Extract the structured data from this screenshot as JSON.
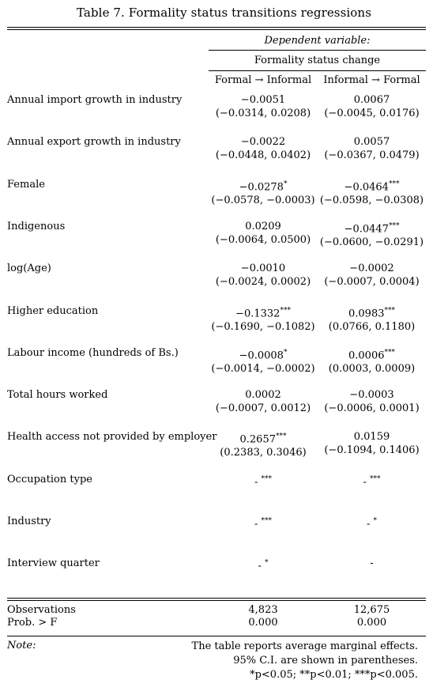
{
  "title": "Table 7. Formality status transitions regressions",
  "header": {
    "dependent_variable": "Dependent variable:",
    "dependent_name": "Formality status change",
    "columns": [
      "Formal → Informal",
      "Informal → Formal"
    ]
  },
  "rows": [
    {
      "label": "Annual import growth in industry",
      "c1_coef": "−0.0051",
      "c1_ci": "(−0.0314, 0.0208)",
      "c2_coef": "0.0067",
      "c2_ci": "(−0.0045, 0.0176)"
    },
    {
      "label": "Annual export growth in industry",
      "c1_coef": "−0.0022",
      "c1_ci": "(−0.0448, 0.0402)",
      "c2_coef": "0.0057",
      "c2_ci": "(−0.0367, 0.0479)"
    },
    {
      "label": "Female",
      "c1_coef": "−0.0278*",
      "c1_ci": "(−0.0578, −0.0003)",
      "c2_coef": "−0.0464***",
      "c2_ci": "(−0.0598, −0.0308)"
    },
    {
      "label": "Indigenous",
      "c1_coef": "0.0209",
      "c1_ci": "(−0.0064, 0.0500)",
      "c2_coef": "−0.0447***",
      "c2_ci": "(−0.0600, −0.0291)"
    },
    {
      "label": "log(Age)",
      "c1_coef": "−0.0010",
      "c1_ci": "(−0.0024, 0.0002)",
      "c2_coef": "−0.0002",
      "c2_ci": "(−0.0007, 0.0004)"
    },
    {
      "label": "Higher education",
      "c1_coef": "−0.1332***",
      "c1_ci": "(−0.1690, −0.1082)",
      "c2_coef": "0.0983***",
      "c2_ci": "(0.0766, 0.1180)"
    },
    {
      "label": "Labour income (hundreds of Bs.)",
      "c1_coef": "−0.0008*",
      "c1_ci": "(−0.0014, −0.0002)",
      "c2_coef": "0.0006***",
      "c2_ci": "(0.0003, 0.0009)"
    },
    {
      "label": "Total hours worked",
      "c1_coef": "0.0002",
      "c1_ci": "(−0.0007, 0.0012)",
      "c2_coef": "−0.0003",
      "c2_ci": "(−0.0006, 0.0001)"
    },
    {
      "label": "Health access not provided by employer",
      "c1_coef": "0.2657***",
      "c1_ci": "(0.2383, 0.3046)",
      "c2_coef": "0.0159",
      "c2_ci": "(−0.1094, 0.1406)"
    },
    {
      "label": "Occupation type",
      "c1_coef": "- ***",
      "c1_ci": "",
      "c2_coef": "- ***",
      "c2_ci": ""
    },
    {
      "label": "Industry",
      "c1_coef": "- ***",
      "c1_ci": "",
      "c2_coef": "- *",
      "c2_ci": ""
    },
    {
      "label": "Interview quarter",
      "c1_coef": "- *",
      "c1_ci": "",
      "c2_coef": "-",
      "c2_ci": ""
    }
  ],
  "stats": [
    {
      "label": "Observations",
      "c1": "4,823",
      "c2": "12,675"
    },
    {
      "label": "Prob. > F",
      "c1": "0.000",
      "c2": "0.000"
    }
  ],
  "note": {
    "label": "Note:",
    "lines": [
      "The table reports average marginal effects.",
      "95% C.I. are shown in parentheses.",
      "*p<0.05; **p<0.01; ***p<0.005."
    ]
  }
}
